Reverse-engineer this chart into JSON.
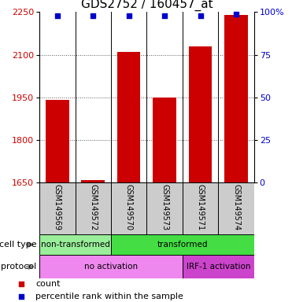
{
  "title": "GDS2752 / 160457_at",
  "samples": [
    "GSM149569",
    "GSM149572",
    "GSM149570",
    "GSM149573",
    "GSM149571",
    "GSM149574"
  ],
  "counts": [
    1940,
    1660,
    2110,
    1950,
    2130,
    2240
  ],
  "percentile_ranks": [
    98,
    98,
    98,
    98,
    98,
    99
  ],
  "ylim_left": [
    1650,
    2250
  ],
  "ylim_right": [
    0,
    100
  ],
  "yticks_left": [
    1650,
    1800,
    1950,
    2100,
    2250
  ],
  "yticks_right": [
    0,
    25,
    50,
    75,
    100
  ],
  "bar_color": "#cc0000",
  "dot_color": "#0000cc",
  "cell_type_groups": [
    {
      "label": "non-transformed",
      "start": 0,
      "end": 2,
      "color": "#99ee99"
    },
    {
      "label": "transformed",
      "start": 2,
      "end": 6,
      "color": "#44dd44"
    }
  ],
  "protocol_groups": [
    {
      "label": "no activation",
      "start": 0,
      "end": 4,
      "color": "#ee88ee"
    },
    {
      "label": "IRF-1 activation",
      "start": 4,
      "end": 6,
      "color": "#cc44cc"
    }
  ],
  "legend_count_label": "count",
  "legend_pct_label": "percentile rank within the sample",
  "cell_type_label": "cell type",
  "protocol_label": "protocol",
  "title_fontsize": 11,
  "tick_label_fontsize": 8,
  "axis_left_color": "#cc0000",
  "axis_right_color": "#0000cc",
  "background_color": "#ffffff",
  "xlab_bg_color": "#cccccc",
  "grid_line_color": "#555555",
  "border_color": "#000000"
}
